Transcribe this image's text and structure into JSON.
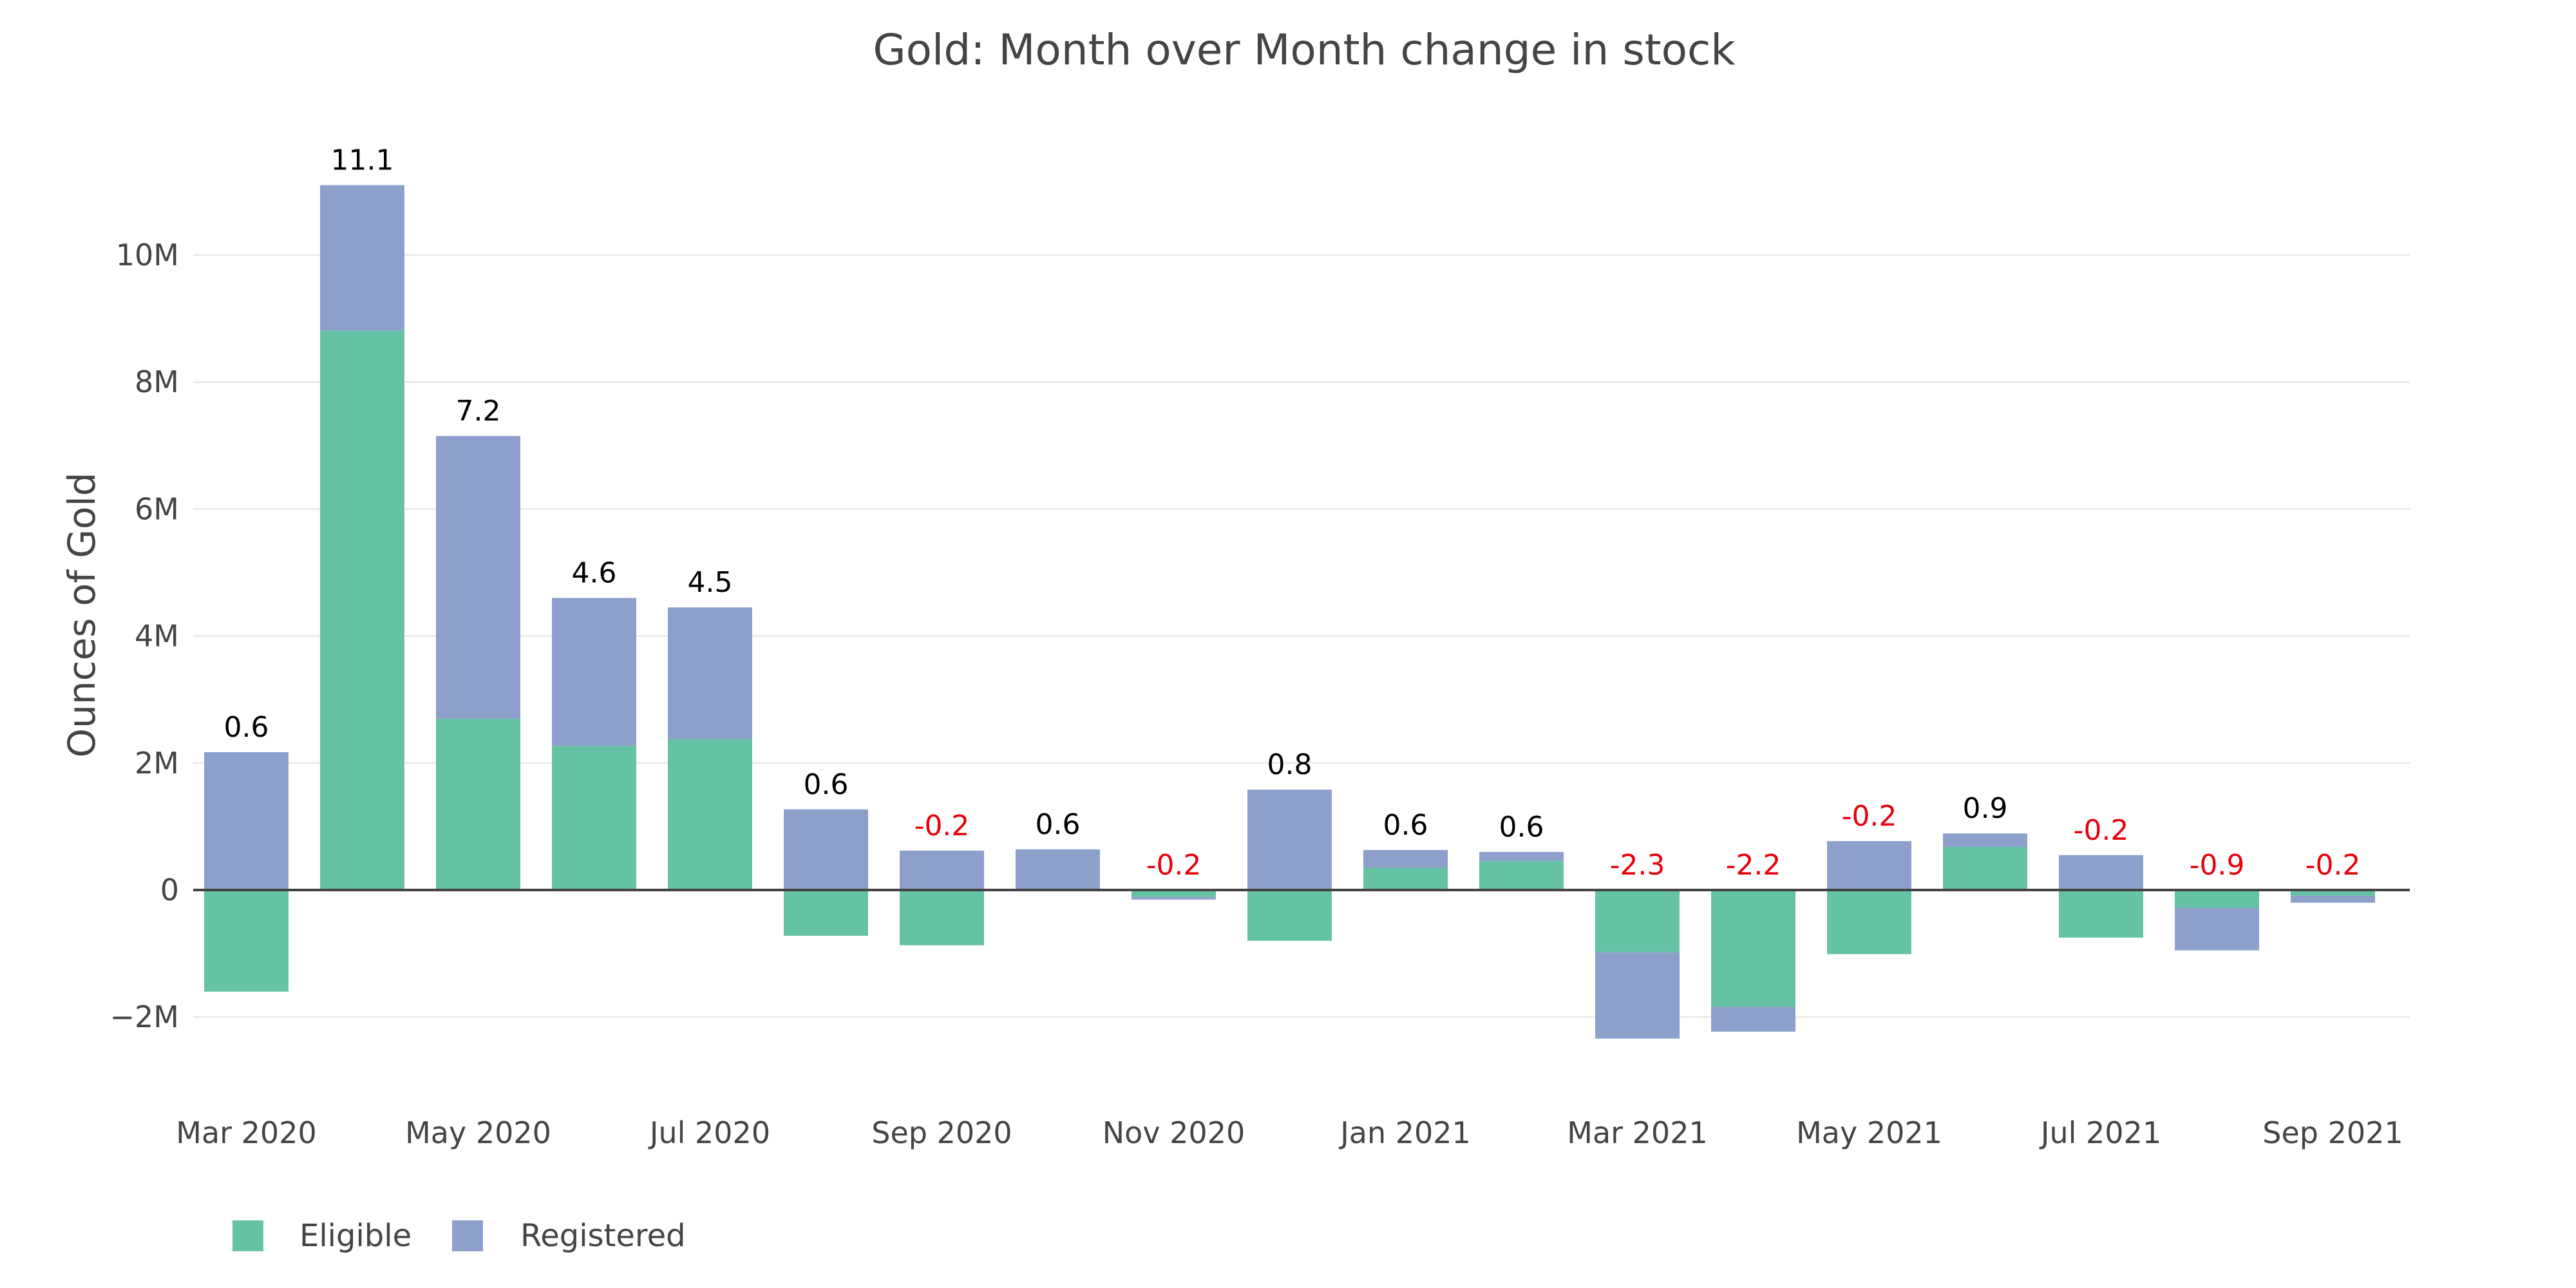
{
  "chart_data": {
    "type": "bar",
    "barmode": "relative",
    "title": "Gold: Month over Month change in stock",
    "xlabel": "",
    "ylabel": "Ounces of Gold",
    "ylim": [
      -3000000,
      11500000
    ],
    "yticks": [
      -2000000,
      0,
      2000000,
      4000000,
      6000000,
      8000000,
      10000000
    ],
    "ytick_labels": [
      "−2M",
      "0",
      "2M",
      "4M",
      "6M",
      "8M",
      "10M"
    ],
    "grid": true,
    "categories": [
      "Mar 2020",
      "Apr 2020",
      "May 2020",
      "Jun 2020",
      "Jul 2020",
      "Aug 2020",
      "Sep 2020",
      "Oct 2020",
      "Nov 2020",
      "Dec 2020",
      "Jan 2021",
      "Feb 2021",
      "Mar 2021",
      "Apr 2021",
      "May 2021",
      "Jun 2021",
      "Jul 2021",
      "Aug 2021",
      "Sep 2021"
    ],
    "xtick_labels": [
      "Mar 2020",
      "May 2020",
      "Jul 2020",
      "Sep 2020",
      "Nov 2020",
      "Jan 2021",
      "Mar 2021",
      "May 2021",
      "Jul 2021",
      "Sep 2021"
    ],
    "series": [
      {
        "name": "Eligible",
        "color": "#66c2a5",
        "values": [
          -1600000,
          8810000,
          2700000,
          2270000,
          2380000,
          -720000,
          -870000,
          -20000,
          -110000,
          -800000,
          350000,
          460000,
          -980000,
          -1840000,
          -1010000,
          680000,
          -750000,
          -280000,
          -90000
        ]
      },
      {
        "name": "Registered",
        "color": "#8da0cb",
        "values": [
          2170000,
          2290000,
          4450000,
          2330000,
          2070000,
          1270000,
          620000,
          640000,
          -40000,
          1580000,
          280000,
          140000,
          -1360000,
          -390000,
          770000,
          210000,
          550000,
          -670000,
          -110000
        ]
      }
    ],
    "totals_labels": [
      "0.6",
      "11.1",
      "7.2",
      "4.6",
      "4.5",
      "0.6",
      "-0.2",
      "0.6",
      "-0.2",
      "0.8",
      "0.6",
      "0.6",
      "-2.3",
      "-2.2",
      "-0.2",
      "0.9",
      "-0.2",
      "-0.9",
      "-0.2"
    ],
    "positive_label_color": "#000000",
    "negative_label_color": "#e8000b",
    "legend": {
      "position": "bottom-left",
      "orientation": "horizontal",
      "items": [
        "Eligible",
        "Registered"
      ]
    }
  }
}
